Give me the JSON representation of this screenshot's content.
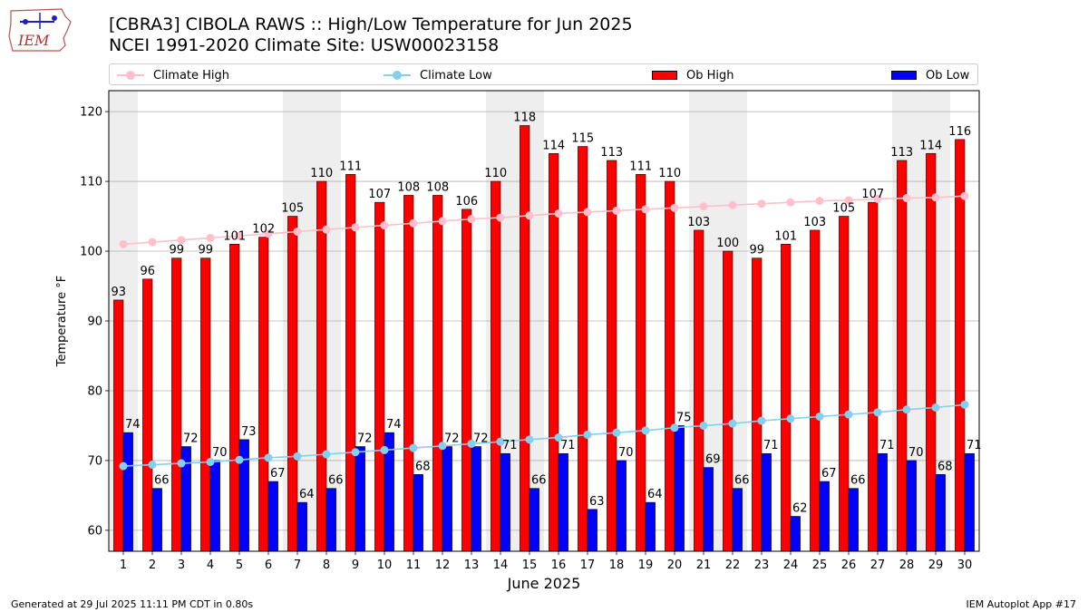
{
  "title_line1": "[CBRA3] CIBOLA RAWS :: High/Low Temperature for Jun 2025",
  "title_line2": "NCEI 1991-2020 Climate Site: USW00023158",
  "logo_text": "IEM",
  "footer_left": "Generated at 29 Jul 2025 11:11 PM CDT in 0.80s",
  "footer_right": "IEM Autoplot App #17",
  "colors": {
    "climate_high": "#ffc0cb",
    "climate_low": "#87ceeb",
    "ob_high": "#ff0000",
    "ob_low": "#0000ff",
    "weekend_shade": "#eeeeee",
    "grid": "#b0b0b0"
  },
  "chart_data": {
    "type": "bar",
    "xlabel": "June 2025",
    "ylabel": "Temperature °F",
    "ylim": [
      57,
      123
    ],
    "yticks": [
      60,
      70,
      80,
      90,
      100,
      110,
      120
    ],
    "grid": "horizontal",
    "legend_position": "top",
    "categories": [
      "1",
      "2",
      "3",
      "4",
      "5",
      "6",
      "7",
      "8",
      "9",
      "10",
      "11",
      "12",
      "13",
      "14",
      "15",
      "16",
      "17",
      "18",
      "19",
      "20",
      "21",
      "22",
      "23",
      "24",
      "25",
      "26",
      "27",
      "28",
      "29",
      "30"
    ],
    "shaded_days": [
      1,
      7,
      8,
      14,
      15,
      21,
      22,
      28,
      29
    ],
    "series": [
      {
        "name": "Climate High",
        "kind": "line",
        "values": [
          101.0,
          101.3,
          101.6,
          101.9,
          102.2,
          102.5,
          102.8,
          103.1,
          103.4,
          103.7,
          104.0,
          104.3,
          104.6,
          104.8,
          105.1,
          105.4,
          105.6,
          105.8,
          106.0,
          106.2,
          106.4,
          106.6,
          106.8,
          107.0,
          107.2,
          107.3,
          107.5,
          107.6,
          107.7,
          107.9
        ]
      },
      {
        "name": "Climate Low",
        "kind": "line",
        "values": [
          69.2,
          69.4,
          69.6,
          69.8,
          70.1,
          70.4,
          70.6,
          70.9,
          71.2,
          71.5,
          71.8,
          72.1,
          72.4,
          72.7,
          73.0,
          73.3,
          73.7,
          74.0,
          74.3,
          74.7,
          75.0,
          75.3,
          75.7,
          76.0,
          76.3,
          76.6,
          76.9,
          77.3,
          77.6,
          78.0
        ]
      },
      {
        "name": "Ob High",
        "kind": "bar",
        "values": [
          93,
          96,
          99,
          99,
          101,
          102,
          105,
          110,
          111,
          107,
          108,
          108,
          106,
          110,
          118,
          114,
          115,
          113,
          111,
          110,
          103,
          100,
          99,
          101,
          103,
          105,
          107,
          113,
          114,
          116
        ]
      },
      {
        "name": "Ob Low",
        "kind": "bar",
        "values": [
          74,
          66,
          72,
          70,
          73,
          67,
          64,
          66,
          72,
          74,
          68,
          72,
          72,
          71,
          66,
          71,
          63,
          70,
          64,
          75,
          69,
          66,
          71,
          62,
          67,
          66,
          71,
          70,
          68,
          71
        ]
      }
    ]
  }
}
